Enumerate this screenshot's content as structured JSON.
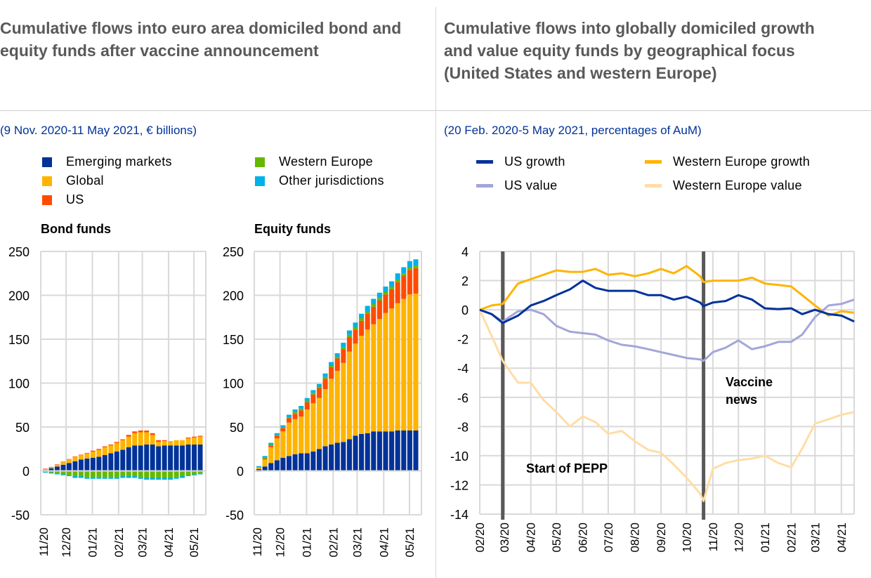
{
  "left": {
    "title": "Cumulative flows into euro area domiciled bond and equity funds after vaccine announcement",
    "subtitle": "(9 Nov. 2020-11 May 2021, € billions)",
    "legend": [
      {
        "label": "Emerging markets",
        "color": "#003299"
      },
      {
        "label": "Western Europe",
        "color": "#65B800"
      },
      {
        "label": "Global",
        "color": "#FFB400"
      },
      {
        "label": "Other jurisdictions",
        "color": "#00B1EA"
      },
      {
        "label": "US",
        "color": "#FF4B00"
      }
    ]
  },
  "right": {
    "title": "Cumulative flows into globally domiciled growth and value equity funds by geographical focus (United States and western Europe)",
    "subtitle": "(20 Feb. 2020-5 May 2021, percentages of AuM)",
    "legend": [
      {
        "label": "US growth",
        "color": "#003299"
      },
      {
        "label": "Western Europe growth",
        "color": "#FFB400"
      },
      {
        "label": "US value",
        "color": "#A3A6D8"
      },
      {
        "label": "Western Europe value",
        "color": "#FFDDA6"
      }
    ]
  },
  "chart_data": [
    {
      "type": "bar",
      "stacked": true,
      "title": "Bond funds",
      "ylim": [
        -50,
        250
      ],
      "yticks": [
        250,
        200,
        150,
        100,
        50,
        0,
        -50
      ],
      "xticks": [
        "11/20",
        "12/20",
        "01/21",
        "02/21",
        "03/21",
        "04/21",
        "05/21"
      ],
      "grid": true,
      "categories": [
        "2020-11-09",
        "2020-11-16",
        "2020-11-23",
        "2020-11-30",
        "2020-12-07",
        "2020-12-14",
        "2020-12-21",
        "2020-12-28",
        "2021-01-04",
        "2021-01-11",
        "2021-01-18",
        "2021-01-25",
        "2021-02-01",
        "2021-02-08",
        "2021-02-15",
        "2021-02-22",
        "2021-03-01",
        "2021-03-08",
        "2021-03-15",
        "2021-03-22",
        "2021-03-29",
        "2021-04-05",
        "2021-04-12",
        "2021-04-19",
        "2021-04-26",
        "2021-05-03",
        "2021-05-10"
      ],
      "series": [
        {
          "name": "Emerging markets",
          "color": "#003299",
          "values": [
            1,
            3,
            5,
            7,
            9,
            11,
            13,
            14,
            15,
            16,
            18,
            20,
            22,
            24,
            27,
            29,
            29,
            30,
            30,
            28,
            29,
            29,
            29,
            29,
            30,
            30,
            30
          ]
        },
        {
          "name": "Global",
          "color": "#FFB400",
          "values": [
            1,
            1,
            2,
            3,
            4,
            5,
            5,
            6,
            7,
            8,
            9,
            9,
            10,
            11,
            12,
            14,
            15,
            14,
            11,
            5,
            5,
            5,
            6,
            6,
            7,
            8,
            9
          ]
        },
        {
          "name": "US",
          "color": "#FF4B00",
          "values": [
            0.5,
            0.5,
            0.5,
            0.5,
            0.5,
            0.5,
            0.5,
            0.5,
            1,
            1,
            1,
            1,
            1,
            1,
            2,
            2,
            2,
            2,
            2,
            2,
            1,
            0,
            0,
            0,
            1,
            1,
            1
          ]
        },
        {
          "name": "Western Europe",
          "color": "#65B800",
          "values": [
            -1,
            -2,
            -3,
            -4,
            -5,
            -6,
            -6,
            -7,
            -7,
            -7,
            -7,
            -7,
            -7,
            -6,
            -6,
            -6,
            -7,
            -8,
            -8,
            -8,
            -8,
            -8,
            -7,
            -6,
            -5,
            -4,
            -3
          ]
        },
        {
          "name": "Other jurisdictions",
          "color": "#00B1EA",
          "values": [
            -1,
            -1,
            -1,
            -1,
            -1,
            -2,
            -2,
            -2,
            -2,
            -2,
            -2,
            -2,
            -2,
            -2,
            -2,
            -2,
            -2,
            -2,
            -2,
            -2,
            -2,
            -2,
            -2,
            -2,
            -1,
            -1,
            -1
          ]
        }
      ]
    },
    {
      "type": "bar",
      "stacked": true,
      "title": "Equity funds",
      "ylim": [
        -50,
        250
      ],
      "yticks": [
        250,
        200,
        150,
        100,
        50,
        0,
        -50
      ],
      "xticks": [
        "11/20",
        "12/20",
        "01/21",
        "02/21",
        "03/21",
        "04/21",
        "05/21"
      ],
      "grid": true,
      "categories": [
        "2020-11-09",
        "2020-11-16",
        "2020-11-23",
        "2020-11-30",
        "2020-12-07",
        "2020-12-14",
        "2020-12-21",
        "2020-12-28",
        "2021-01-04",
        "2021-01-11",
        "2021-01-18",
        "2021-01-25",
        "2021-02-01",
        "2021-02-08",
        "2021-02-15",
        "2021-02-22",
        "2021-03-01",
        "2021-03-08",
        "2021-03-15",
        "2021-03-22",
        "2021-03-29",
        "2021-04-05",
        "2021-04-12",
        "2021-04-19",
        "2021-04-26",
        "2021-05-03",
        "2021-05-10"
      ],
      "series": [
        {
          "name": "Emerging markets",
          "color": "#003299",
          "values": [
            2,
            5,
            9,
            12,
            15,
            17,
            19,
            20,
            20,
            22,
            25,
            28,
            30,
            32,
            33,
            36,
            40,
            42,
            43,
            45,
            45,
            45,
            45,
            46,
            46,
            46,
            46
          ]
        },
        {
          "name": "Global",
          "color": "#FFB400",
          "values": [
            2,
            8,
            18,
            25,
            30,
            38,
            40,
            42,
            50,
            55,
            58,
            65,
            75,
            82,
            90,
            100,
            105,
            112,
            118,
            122,
            128,
            135,
            140,
            145,
            150,
            155,
            156
          ]
        },
        {
          "name": "US",
          "color": "#FF4B00",
          "values": [
            0.5,
            1,
            2,
            3,
            4,
            5,
            6,
            7,
            8,
            10,
            11,
            12,
            13,
            14,
            15,
            16,
            16,
            17,
            18,
            20,
            21,
            21,
            22,
            24,
            26,
            28,
            29
          ]
        },
        {
          "name": "Western Europe",
          "color": "#65B800",
          "values": [
            -1,
            1,
            1,
            1,
            1,
            1,
            2,
            2,
            2,
            2,
            2,
            2,
            2,
            2,
            3,
            3,
            3,
            3,
            3,
            3,
            3,
            3,
            3,
            3,
            3,
            3,
            3
          ]
        },
        {
          "name": "Other jurisdictions",
          "color": "#00B1EA",
          "values": [
            1,
            2,
            2,
            2,
            2,
            3,
            3,
            3,
            3,
            3,
            3,
            4,
            4,
            4,
            5,
            5,
            5,
            5,
            6,
            6,
            6,
            6,
            6,
            7,
            7,
            7,
            7
          ]
        }
      ]
    },
    {
      "type": "line",
      "ylim": [
        -14,
        4
      ],
      "yticks": [
        4,
        2,
        0,
        -2,
        -4,
        -6,
        -8,
        -10,
        -12,
        -14
      ],
      "xticks": [
        "02/20",
        "03/20",
        "04/20",
        "05/20",
        "06/20",
        "07/20",
        "08/20",
        "09/20",
        "10/20",
        "11/20",
        "12/20",
        "01/21",
        "02/21",
        "03/21",
        "04/21"
      ],
      "grid": true,
      "x": [
        "2020-02-20",
        "2020-03-05",
        "2020-03-18",
        "2020-04-05",
        "2020-04-20",
        "2020-05-05",
        "2020-05-20",
        "2020-06-05",
        "2020-06-20",
        "2020-07-05",
        "2020-07-20",
        "2020-08-05",
        "2020-08-20",
        "2020-09-05",
        "2020-09-20",
        "2020-10-05",
        "2020-10-20",
        "2020-11-05",
        "2020-11-09",
        "2020-11-20",
        "2020-12-05",
        "2020-12-20",
        "2021-01-05",
        "2021-01-20",
        "2021-02-05",
        "2021-02-20",
        "2021-03-05",
        "2021-03-20",
        "2021-04-05",
        "2021-04-20",
        "2021-05-05"
      ],
      "series": [
        {
          "name": "US growth",
          "color": "#003299",
          "values": [
            0,
            -0.3,
            -0.9,
            -0.4,
            0.3,
            0.6,
            1.0,
            1.4,
            2.0,
            1.5,
            1.3,
            1.3,
            1.3,
            1.0,
            1.0,
            0.7,
            0.9,
            0.5,
            0.25,
            0.5,
            0.6,
            1.0,
            0.7,
            0.1,
            0.05,
            0.1,
            -0.3,
            0,
            -0.3,
            -0.4,
            -0.8
          ]
        },
        {
          "name": "US value",
          "color": "#A3A6D8",
          "values": [
            0,
            -0.3,
            -0.8,
            -0.1,
            0,
            -0.3,
            -1.1,
            -1.5,
            -1.6,
            -1.7,
            -2.1,
            -2.4,
            -2.5,
            -2.7,
            -2.9,
            -3.1,
            -3.3,
            -3.4,
            -3.5,
            -2.9,
            -2.6,
            -2.1,
            -2.7,
            -2.5,
            -2.2,
            -2.2,
            -1.7,
            -0.5,
            0.3,
            0.4,
            0.7
          ]
        },
        {
          "name": "Western Europe growth",
          "color": "#FFB400",
          "values": [
            0,
            0.3,
            0.4,
            1.8,
            2.1,
            2.4,
            2.7,
            2.6,
            2.6,
            2.8,
            2.4,
            2.5,
            2.3,
            2.5,
            2.8,
            2.5,
            3.0,
            2.3,
            1.9,
            2.0,
            2.0,
            2.0,
            2.2,
            1.8,
            1.7,
            1.6,
            1.0,
            0.3,
            -0.4,
            -0.1,
            -0.2
          ]
        },
        {
          "name": "Western Europe value",
          "color": "#FFDDA6",
          "values": [
            0,
            -1.8,
            -3.5,
            -5.0,
            -5.0,
            -6.2,
            -7.0,
            -8.0,
            -7.3,
            -7.7,
            -8.5,
            -8.3,
            -9.0,
            -9.6,
            -9.8,
            -10.6,
            -11.5,
            -12.6,
            -13.1,
            -10.9,
            -10.5,
            -10.3,
            -10.2,
            -10.0,
            -10.5,
            -10.8,
            -9.5,
            -7.8,
            -7.5,
            -7.2,
            -7.0
          ]
        }
      ],
      "markers": [
        {
          "date": "2020-03-18",
          "label": "Start of PEPP"
        },
        {
          "date": "2020-11-09",
          "label": "Vaccine news"
        }
      ]
    }
  ]
}
